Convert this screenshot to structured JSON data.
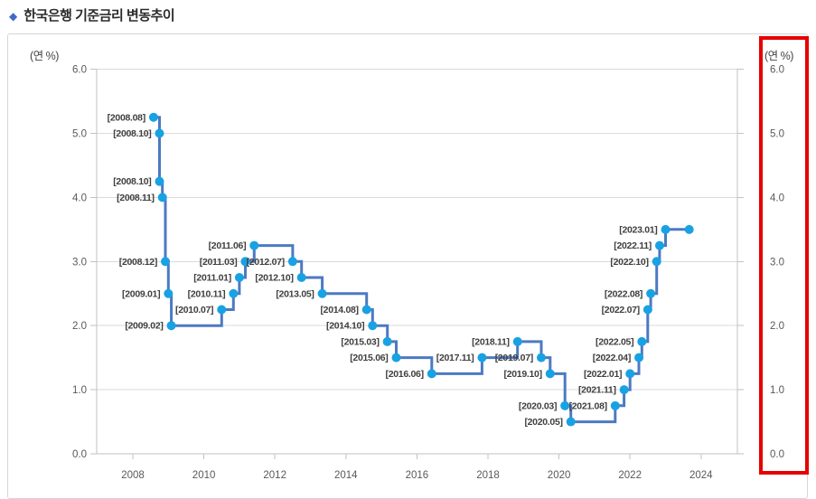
{
  "page": {
    "title_bullet": "◆",
    "title": "한국은행 기준금리 변동추이"
  },
  "chart_data": {
    "type": "line",
    "step_style": "step-after",
    "title": "한국은행 기준금리 변동추이",
    "y_unit_label_left": "(연 %)",
    "y_unit_label_right": "(연 %)",
    "ylim": [
      0.0,
      6.0
    ],
    "ytick_step": 1.0,
    "yticks": [
      "0.0",
      "1.0",
      "2.0",
      "3.0",
      "4.0",
      "5.0",
      "6.0"
    ],
    "xticks": [
      "2008",
      "2010",
      "2012",
      "2014",
      "2016",
      "2018",
      "2020",
      "2022",
      "2024"
    ],
    "grid": "horizontal-only",
    "legend_position": "none",
    "points": [
      {
        "date": "2008.08",
        "label": "[2008.08]",
        "value": 5.25
      },
      {
        "date": "2008.10",
        "label": "[2008.10]",
        "value": 5.0
      },
      {
        "date": "2008.10",
        "label": "[2008.10]",
        "value": 4.25
      },
      {
        "date": "2008.11",
        "label": "[2008.11]",
        "value": 4.0
      },
      {
        "date": "2008.12",
        "label": "[2008.12]",
        "value": 3.0
      },
      {
        "date": "2009.01",
        "label": "[2009.01]",
        "value": 2.5
      },
      {
        "date": "2009.02",
        "label": "[2009.02]",
        "value": 2.0
      },
      {
        "date": "2010.07",
        "label": "[2010.07]",
        "value": 2.25
      },
      {
        "date": "2010.11",
        "label": "[2010.11]",
        "value": 2.5
      },
      {
        "date": "2011.01",
        "label": "[2011.01]",
        "value": 2.75
      },
      {
        "date": "2011.03",
        "label": "[2011.03]",
        "value": 3.0
      },
      {
        "date": "2011.06",
        "label": "[2011.06]",
        "value": 3.25
      },
      {
        "date": "2012.07",
        "label": "[2012.07]",
        "value": 3.0
      },
      {
        "date": "2012.10",
        "label": "[2012.10]",
        "value": 2.75
      },
      {
        "date": "2013.05",
        "label": "[2013.05]",
        "value": 2.5
      },
      {
        "date": "2014.08",
        "label": "[2014.08]",
        "value": 2.25
      },
      {
        "date": "2014.10",
        "label": "[2014.10]",
        "value": 2.0
      },
      {
        "date": "2015.03",
        "label": "[2015.03]",
        "value": 1.75
      },
      {
        "date": "2015.06",
        "label": "[2015.06]",
        "value": 1.5
      },
      {
        "date": "2016.06",
        "label": "[2016.06]",
        "value": 1.25
      },
      {
        "date": "2017.11",
        "label": "[2017.11]",
        "value": 1.5
      },
      {
        "date": "2018.11",
        "label": "[2018.11]",
        "value": 1.75
      },
      {
        "date": "2019.07",
        "label": "[2019.07]",
        "value": 1.5
      },
      {
        "date": "2019.10",
        "label": "[2019.10]",
        "value": 1.25
      },
      {
        "date": "2020.03",
        "label": "[2020.03]",
        "value": 0.75
      },
      {
        "date": "2020.05",
        "label": "[2020.05]",
        "value": 0.5
      },
      {
        "date": "2021.08",
        "label": "[2021.08]",
        "value": 0.75
      },
      {
        "date": "2021.11",
        "label": "[2021.11]",
        "value": 1.0
      },
      {
        "date": "2022.01",
        "label": "[2022.01]",
        "value": 1.25
      },
      {
        "date": "2022.04",
        "label": "[2022.04]",
        "value": 1.5
      },
      {
        "date": "2022.05",
        "label": "[2022.05]",
        "value": 1.75
      },
      {
        "date": "2022.07",
        "label": "[2022.07]",
        "value": 2.25
      },
      {
        "date": "2022.08",
        "label": "[2022.08]",
        "value": 2.5
      },
      {
        "date": "2022.10",
        "label": "[2022.10]",
        "value": 3.0
      },
      {
        "date": "2022.11",
        "label": "[2022.11]",
        "value": 3.25
      },
      {
        "date": "2023.01",
        "label": "[2023.01]",
        "value": 3.5
      },
      {
        "date": "2023.09",
        "label": "",
        "value": 3.5
      }
    ],
    "colors": {
      "line": "#4d79c3",
      "marker": "#19a2e3",
      "grid": "#dadada",
      "axis": "#c2c2c2",
      "point_label": "#3f3f3f",
      "tick_label": "#595959",
      "highlight_box": "#e60000"
    }
  }
}
